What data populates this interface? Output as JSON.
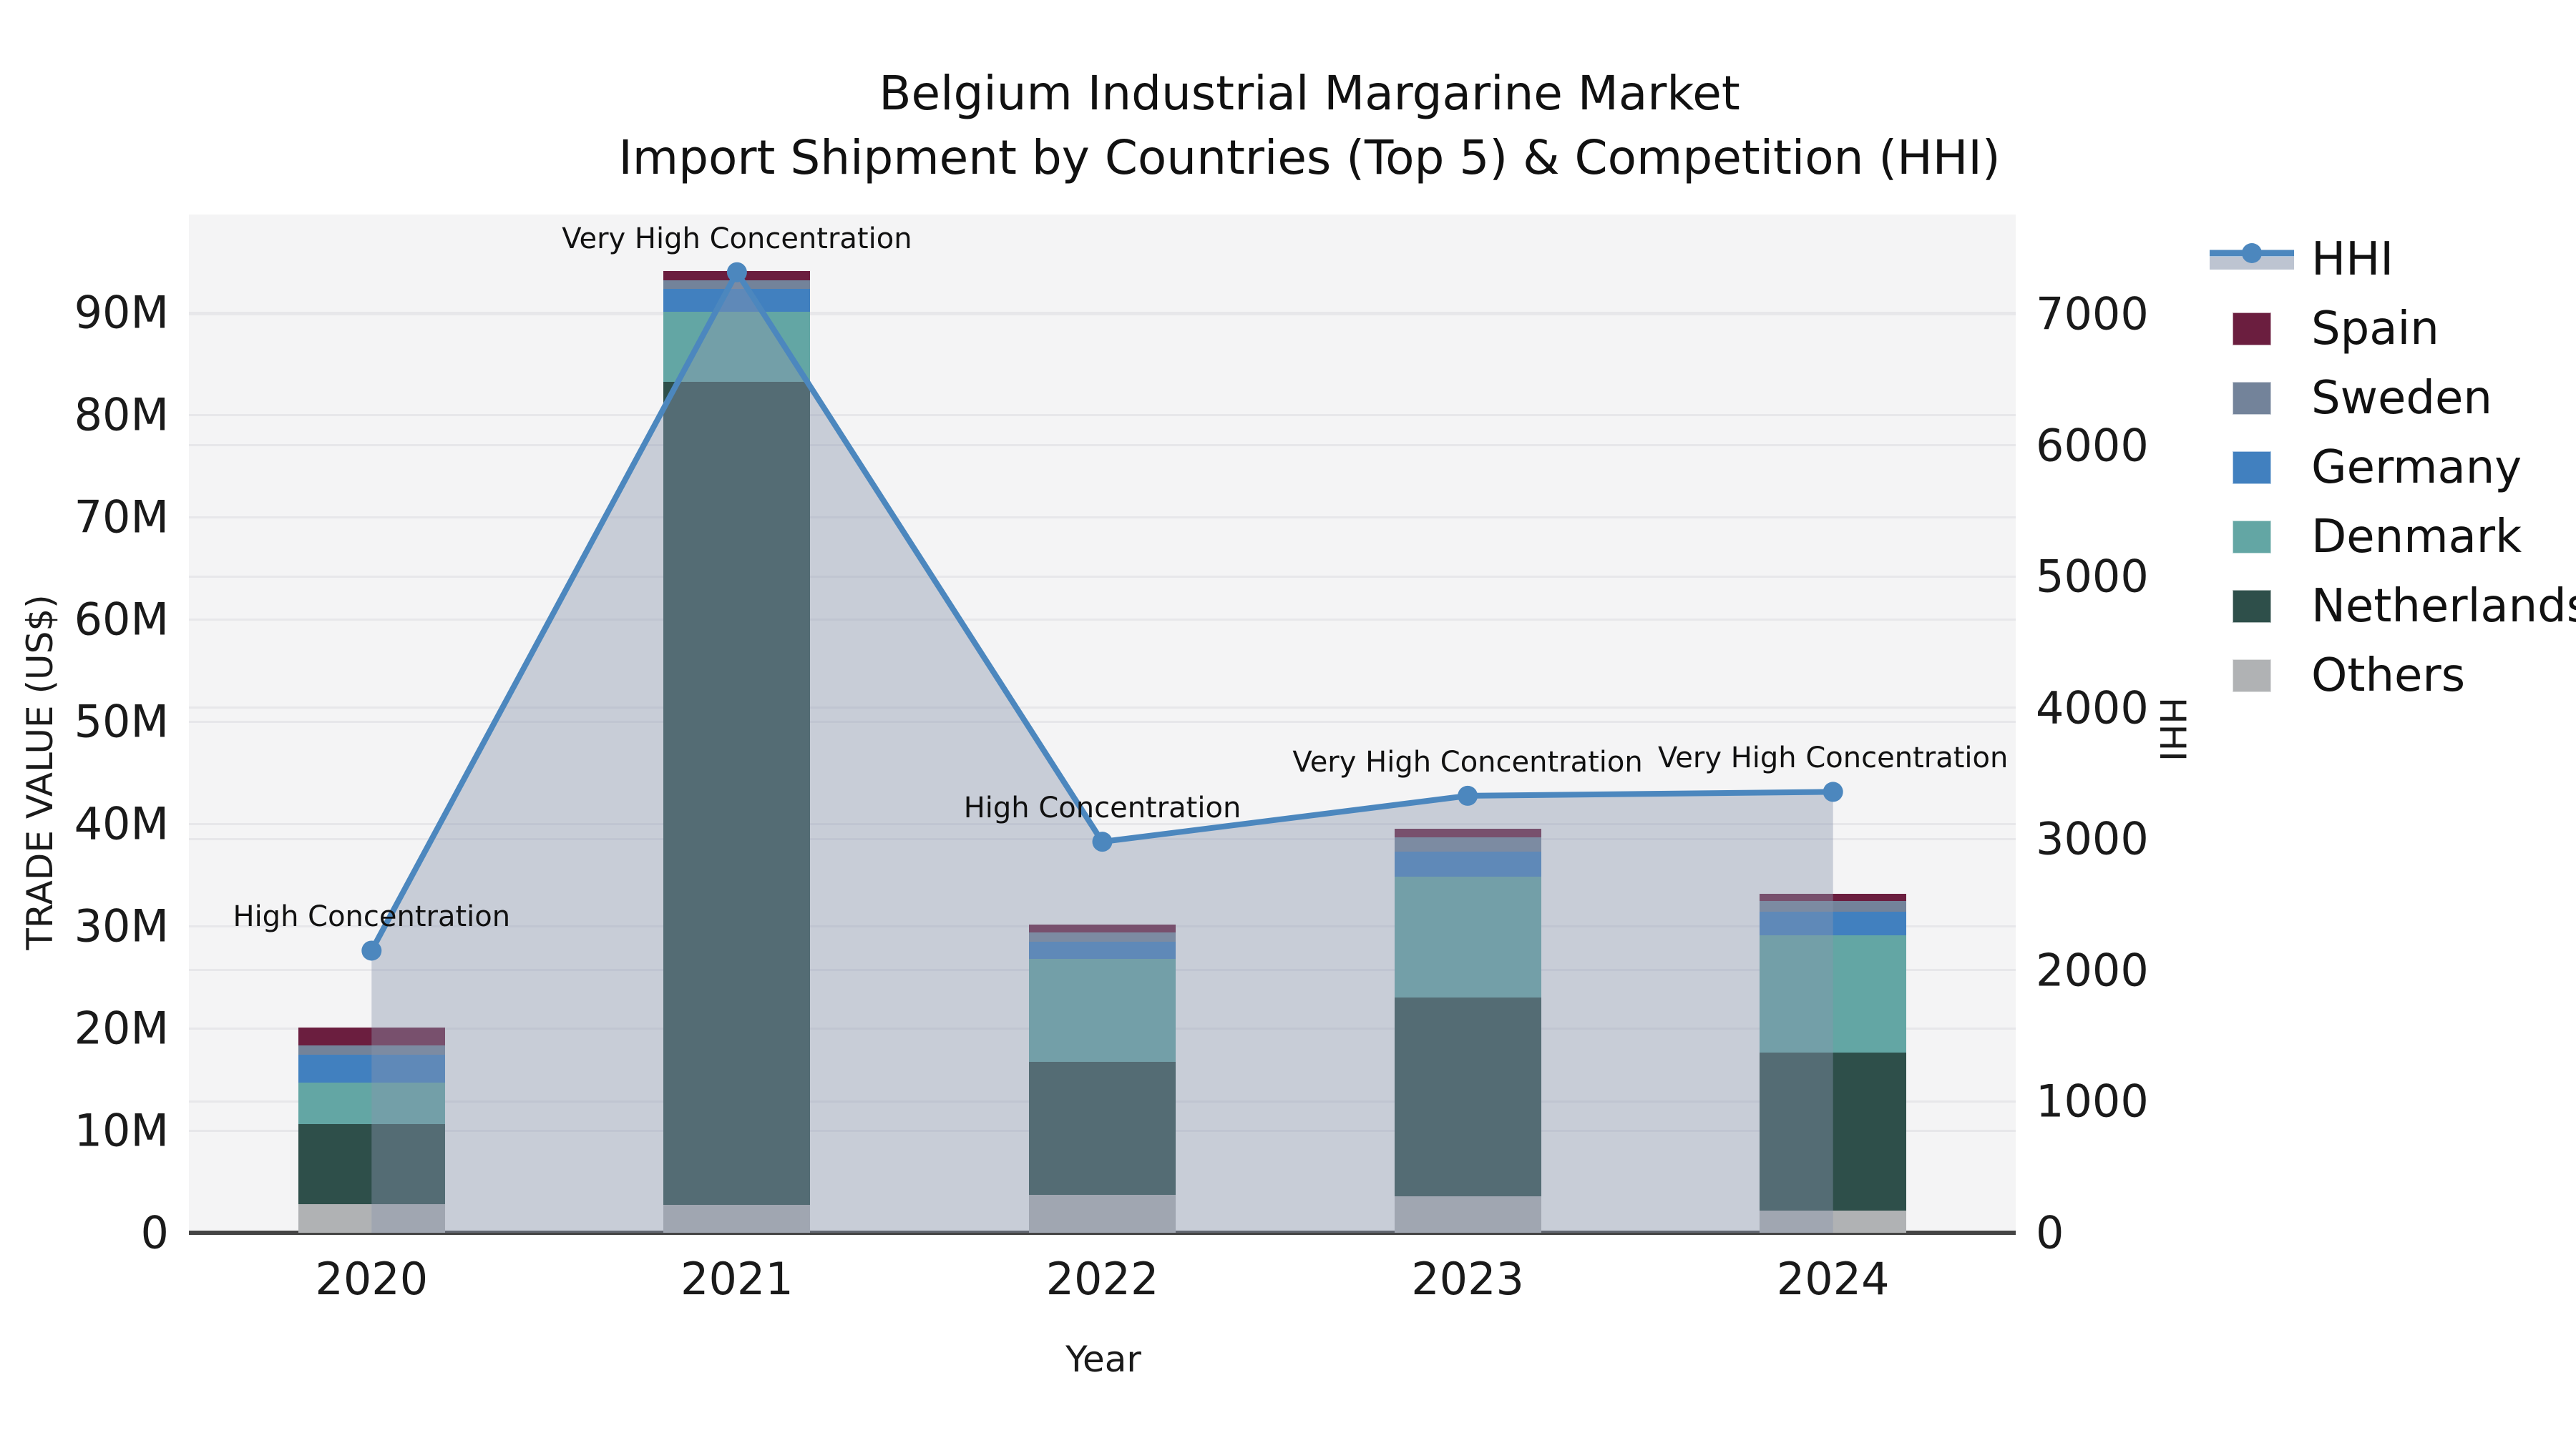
{
  "title": {
    "line1": "Belgium Industrial Margarine Market",
    "line2": "Import Shipment by Countries (Top 5) & Competition (HHI)"
  },
  "chart_data": {
    "type": "bar+line",
    "subtype": "stacked bars (trade value, left axis) with HHI line and shaded area (right axis)",
    "categories": [
      "2020",
      "2021",
      "2022",
      "2023",
      "2024"
    ],
    "x_axis_label": "Year",
    "left_axis": {
      "label": "TRADE VALUE (US$)",
      "units": "millions USD",
      "range": [
        0,
        99.6
      ],
      "ticks": [
        {
          "value": 0,
          "label": "0"
        },
        {
          "value": 10,
          "label": "10M"
        },
        {
          "value": 20,
          "label": "20M"
        },
        {
          "value": 30,
          "label": "30M"
        },
        {
          "value": 40,
          "label": "40M"
        },
        {
          "value": 50,
          "label": "50M"
        },
        {
          "value": 60,
          "label": "60M"
        },
        {
          "value": 70,
          "label": "70M"
        },
        {
          "value": 80,
          "label": "80M"
        },
        {
          "value": 90,
          "label": "90M"
        }
      ]
    },
    "right_axis": {
      "label": "HHI",
      "range": [
        0,
        7760
      ],
      "ticks": [
        {
          "value": 0,
          "label": "0"
        },
        {
          "value": 1000,
          "label": "1000"
        },
        {
          "value": 2000,
          "label": "2000"
        },
        {
          "value": 3000,
          "label": "3000"
        },
        {
          "value": 4000,
          "label": "4000"
        },
        {
          "value": 5000,
          "label": "5000"
        },
        {
          "value": 6000,
          "label": "6000"
        },
        {
          "value": 7000,
          "label": "7000"
        }
      ]
    },
    "series": [
      {
        "name": "Others",
        "color": "#b0b2b4",
        "values": [
          2.8,
          2.7,
          3.7,
          3.6,
          2.2
        ]
      },
      {
        "name": "Netherlands",
        "color": "#2e4f4a",
        "values": [
          7.8,
          80.5,
          13.0,
          19.4,
          15.4
        ]
      },
      {
        "name": "Denmark",
        "color": "#63a6a4",
        "values": [
          4.1,
          6.9,
          10.1,
          11.8,
          11.5
        ]
      },
      {
        "name": "Germany",
        "color": "#4180bf",
        "values": [
          2.7,
          2.2,
          1.7,
          2.45,
          2.3
        ]
      },
      {
        "name": "Sweden",
        "color": "#73839a",
        "values": [
          0.9,
          0.85,
          0.85,
          1.4,
          1.05
        ]
      },
      {
        "name": "Spain",
        "color": "#6b1e3f",
        "values": [
          1.8,
          0.9,
          0.8,
          0.85,
          0.7
        ]
      }
    ],
    "line_series": {
      "name": "HHI",
      "color": "#4c87be",
      "area_fill": "rgba(138,150,174,0.42)",
      "values": [
        2150,
        7320,
        2980,
        3330,
        3360
      ],
      "annotations": [
        "High Concentration",
        "Very High Concentration",
        "High Concentration",
        "Very High Concentration",
        "Very High Concentration"
      ]
    },
    "plot_background": "#f4f4f5",
    "gridline_color": "#e7e7ea",
    "axis_line_color": "#454545",
    "grid": true,
    "legend_position": "right"
  },
  "legend": {
    "items": [
      {
        "label": "HHI",
        "marker": "line"
      },
      {
        "label": "Spain",
        "marker": "swatch"
      },
      {
        "label": "Sweden",
        "marker": "swatch"
      },
      {
        "label": "Germany",
        "marker": "swatch"
      },
      {
        "label": "Denmark",
        "marker": "swatch"
      },
      {
        "label": "Netherlands",
        "marker": "swatch"
      },
      {
        "label": "Others",
        "marker": "swatch"
      }
    ]
  }
}
